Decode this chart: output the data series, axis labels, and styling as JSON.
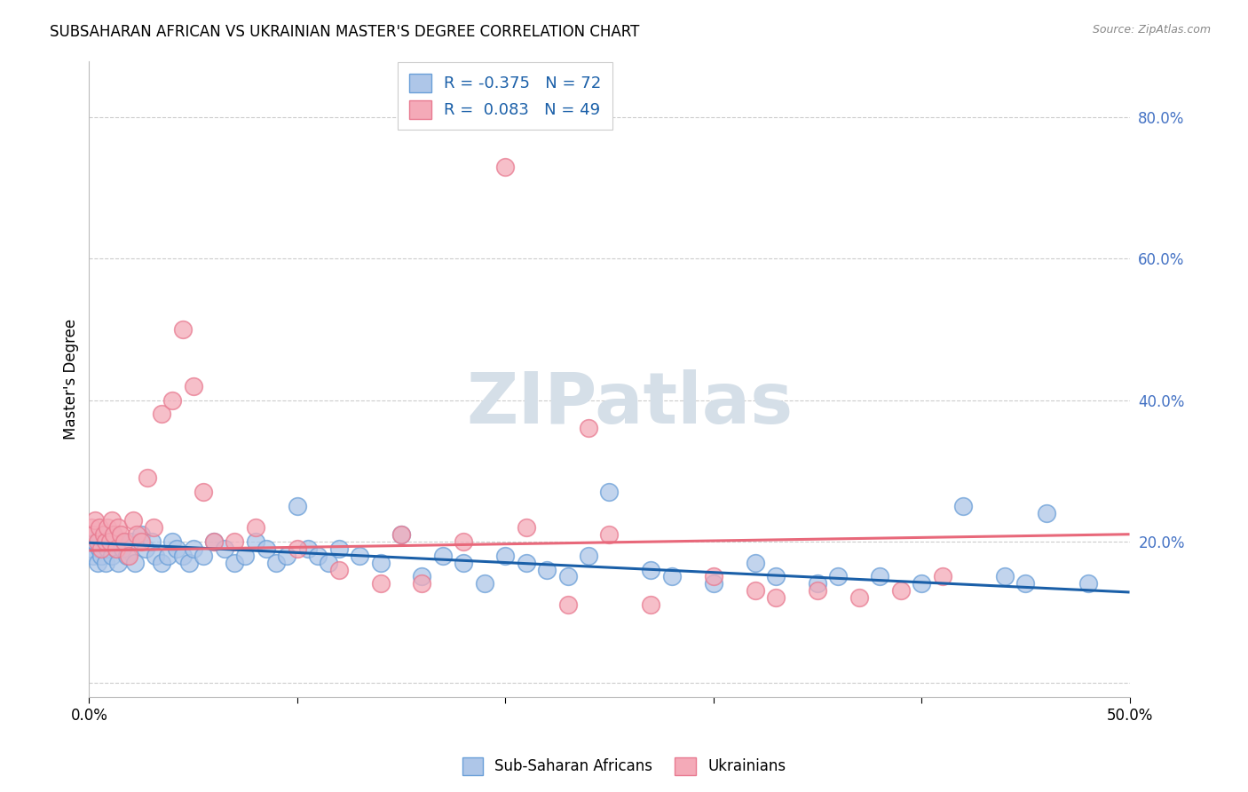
{
  "title": "SUBSAHARAN AFRICAN VS UKRAINIAN MASTER'S DEGREE CORRELATION CHART",
  "source": "Source: ZipAtlas.com",
  "ylabel": "Master's Degree",
  "xlim": [
    0.0,
    0.5
  ],
  "ylim": [
    -0.02,
    0.88
  ],
  "ytick_vals": [
    0.0,
    0.2,
    0.4,
    0.6,
    0.8
  ],
  "ytick_labels": [
    "",
    "20.0%",
    "40.0%",
    "60.0%",
    "80.0%"
  ],
  "xtick_vals": [
    0.0,
    0.1,
    0.2,
    0.3,
    0.4,
    0.5
  ],
  "xtick_labels": [
    "0.0%",
    "",
    "",
    "",
    "",
    "50.0%"
  ],
  "blue_R": -0.375,
  "blue_N": 72,
  "pink_R": 0.083,
  "pink_N": 49,
  "blue_fill_color": "#aec6e8",
  "pink_fill_color": "#f4aab8",
  "blue_edge_color": "#6a9fd8",
  "pink_edge_color": "#e87a90",
  "blue_line_color": "#1a5fa8",
  "pink_line_color": "#e8687a",
  "grid_color": "#cccccc",
  "watermark_color": "#d5dfe8",
  "legend_label_blue": "Sub-Saharan Africans",
  "legend_label_pink": "Ukrainians",
  "blue_line_start": 0.198,
  "blue_line_end": 0.128,
  "pink_line_start": 0.187,
  "pink_line_end": 0.21,
  "blue_scatter_x": [
    0.001,
    0.002,
    0.003,
    0.004,
    0.005,
    0.005,
    0.006,
    0.007,
    0.008,
    0.009,
    0.01,
    0.011,
    0.012,
    0.013,
    0.014,
    0.015,
    0.016,
    0.018,
    0.02,
    0.022,
    0.025,
    0.027,
    0.03,
    0.032,
    0.035,
    0.038,
    0.04,
    0.042,
    0.045,
    0.048,
    0.05,
    0.055,
    0.06,
    0.065,
    0.07,
    0.075,
    0.08,
    0.085,
    0.09,
    0.095,
    0.1,
    0.105,
    0.11,
    0.115,
    0.12,
    0.13,
    0.14,
    0.15,
    0.16,
    0.17,
    0.18,
    0.19,
    0.2,
    0.21,
    0.22,
    0.23,
    0.24,
    0.25,
    0.27,
    0.28,
    0.3,
    0.32,
    0.33,
    0.35,
    0.36,
    0.38,
    0.4,
    0.42,
    0.44,
    0.45,
    0.46,
    0.48
  ],
  "blue_scatter_y": [
    0.19,
    0.18,
    0.2,
    0.17,
    0.19,
    0.21,
    0.18,
    0.2,
    0.17,
    0.19,
    0.2,
    0.18,
    0.21,
    0.19,
    0.17,
    0.2,
    0.19,
    0.18,
    0.2,
    0.17,
    0.21,
    0.19,
    0.2,
    0.18,
    0.17,
    0.18,
    0.2,
    0.19,
    0.18,
    0.17,
    0.19,
    0.18,
    0.2,
    0.19,
    0.17,
    0.18,
    0.2,
    0.19,
    0.17,
    0.18,
    0.25,
    0.19,
    0.18,
    0.17,
    0.19,
    0.18,
    0.17,
    0.21,
    0.15,
    0.18,
    0.17,
    0.14,
    0.18,
    0.17,
    0.16,
    0.15,
    0.18,
    0.27,
    0.16,
    0.15,
    0.14,
    0.17,
    0.15,
    0.14,
    0.15,
    0.15,
    0.14,
    0.25,
    0.15,
    0.14,
    0.24,
    0.14
  ],
  "pink_scatter_x": [
    0.001,
    0.002,
    0.003,
    0.004,
    0.005,
    0.006,
    0.007,
    0.008,
    0.009,
    0.01,
    0.011,
    0.012,
    0.013,
    0.014,
    0.015,
    0.017,
    0.019,
    0.021,
    0.023,
    0.025,
    0.028,
    0.031,
    0.035,
    0.04,
    0.045,
    0.05,
    0.055,
    0.06,
    0.07,
    0.08,
    0.1,
    0.12,
    0.14,
    0.15,
    0.18,
    0.21,
    0.23,
    0.25,
    0.27,
    0.3,
    0.32,
    0.35,
    0.37,
    0.39,
    0.41,
    0.24,
    0.2,
    0.16,
    0.33
  ],
  "pink_scatter_y": [
    0.22,
    0.21,
    0.23,
    0.2,
    0.22,
    0.19,
    0.21,
    0.2,
    0.22,
    0.2,
    0.23,
    0.21,
    0.19,
    0.22,
    0.21,
    0.2,
    0.18,
    0.23,
    0.21,
    0.2,
    0.29,
    0.22,
    0.38,
    0.4,
    0.5,
    0.42,
    0.27,
    0.2,
    0.2,
    0.22,
    0.19,
    0.16,
    0.14,
    0.21,
    0.2,
    0.22,
    0.11,
    0.21,
    0.11,
    0.15,
    0.13,
    0.13,
    0.12,
    0.13,
    0.15,
    0.36,
    0.73,
    0.14,
    0.12
  ]
}
